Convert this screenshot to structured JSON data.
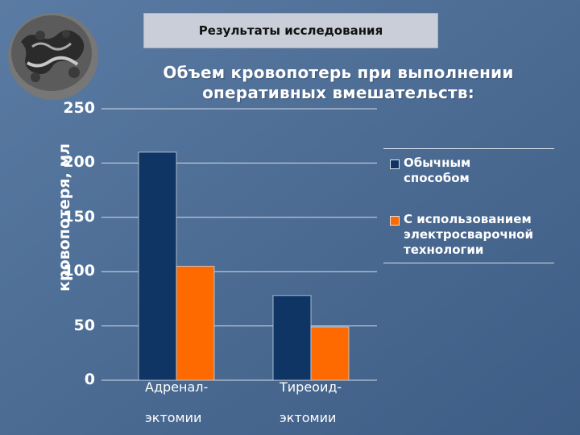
{
  "header": {
    "title": "Результаты исследования"
  },
  "colors": {
    "background": "#4a6a92",
    "series_1": "#0f3565",
    "series_2": "#ff6a00",
    "header_box": "#c9ced8"
  },
  "logo": {
    "icon": "cell-structure-logo"
  },
  "chart_data": {
    "type": "bar",
    "title": "Объем кровопотерь при выполнении оперативных вмешательств:",
    "ylabel": "кровопотеря, мл",
    "xlabel": "",
    "ylim": [
      0,
      250
    ],
    "y_ticks": [
      "0",
      "50",
      "100",
      "150",
      "200",
      "250"
    ],
    "categories": [
      {
        "line1": "Адренал-",
        "line2": "эктомии"
      },
      {
        "line1": "Тиреоид-",
        "line2": "эктомии"
      }
    ],
    "series": [
      {
        "name": "Обычным способом",
        "values": [
          210,
          78
        ]
      },
      {
        "name": "С использованием электросварочной технологии",
        "values": [
          105,
          49
        ]
      }
    ],
    "grid": true,
    "legend_position": "right"
  }
}
